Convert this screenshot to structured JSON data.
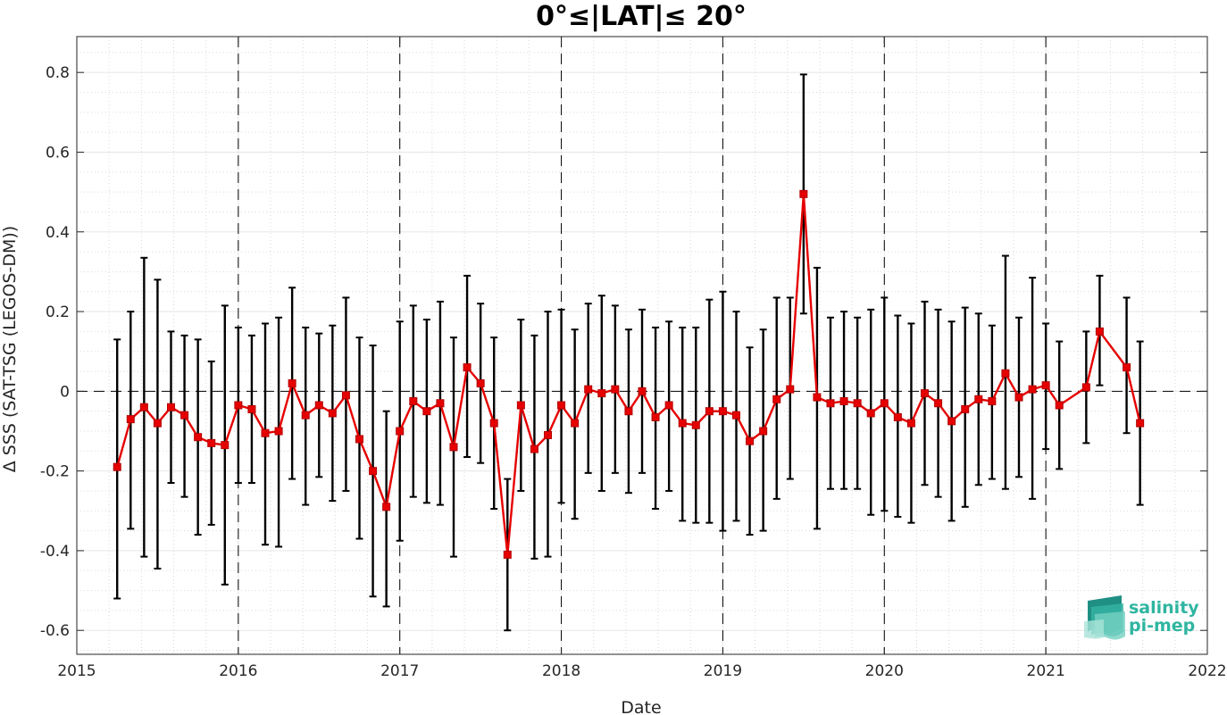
{
  "chart_data": {
    "type": "line",
    "title": "0°≤|LAT|≤ 20°",
    "xlabel": "Date",
    "ylabel": "Δ SSS (SAT-TSG (LEGOS-DM))",
    "xlim": [
      2015,
      2022
    ],
    "ylim": [
      -0.66,
      0.89
    ],
    "x_ticks": [
      "2015",
      "2016",
      "2017",
      "2018",
      "2019",
      "2020",
      "2021",
      "2022"
    ],
    "y_ticks": [
      "-0.6",
      "-0.4",
      "-0.2",
      "0",
      "0.2",
      "0.4",
      "0.6",
      "0.8"
    ],
    "grid": true,
    "year_separators": [
      2016,
      2017,
      2018,
      2019,
      2020,
      2021
    ],
    "zero_line": 0,
    "colors": {
      "series": "#e60000",
      "errorbar": "#000000",
      "grid": "#d9d9d9",
      "logo": "#2fb5a1"
    },
    "series": [
      {
        "x": [
          "2015-04",
          "2015-05",
          "2015-06",
          "2015-07",
          "2015-08",
          "2015-09",
          "2015-10",
          "2015-11",
          "2015-12",
          "2016-01",
          "2016-02",
          "2016-03",
          "2016-04",
          "2016-05",
          "2016-06",
          "2016-07",
          "2016-08",
          "2016-09",
          "2016-10",
          "2016-11",
          "2016-12",
          "2017-01",
          "2017-02",
          "2017-03",
          "2017-04",
          "2017-05",
          "2017-06",
          "2017-07",
          "2017-08",
          "2017-09",
          "2017-10",
          "2017-11",
          "2017-12",
          "2018-01",
          "2018-02",
          "2018-03",
          "2018-04",
          "2018-05",
          "2018-06",
          "2018-07",
          "2018-08",
          "2018-09",
          "2018-10",
          "2018-11",
          "2018-12",
          "2019-01",
          "2019-02",
          "2019-03",
          "2019-04",
          "2019-05",
          "2019-06",
          "2019-07",
          "2019-08",
          "2019-09",
          "2019-10",
          "2019-11",
          "2019-12",
          "2020-01",
          "2020-02",
          "2020-03",
          "2020-04",
          "2020-05",
          "2020-06",
          "2020-07",
          "2020-08",
          "2020-09",
          "2020-10",
          "2020-11",
          "2020-12",
          "2021-01",
          "2021-02",
          "2021-04",
          "2021-05",
          "2021-07",
          "2021-08"
        ],
        "values": [
          -0.19,
          -0.07,
          -0.04,
          -0.08,
          -0.04,
          -0.06,
          -0.115,
          -0.13,
          -0.135,
          -0.035,
          -0.045,
          -0.105,
          -0.1,
          0.02,
          -0.06,
          -0.035,
          -0.055,
          -0.01,
          -0.12,
          -0.2,
          -0.29,
          -0.1,
          -0.025,
          -0.05,
          -0.03,
          -0.14,
          0.06,
          0.02,
          -0.08,
          -0.41,
          -0.035,
          -0.145,
          -0.11,
          -0.035,
          -0.08,
          0.005,
          -0.005,
          0.005,
          -0.05,
          0.0,
          -0.065,
          -0.035,
          -0.08,
          -0.085,
          -0.05,
          -0.05,
          -0.06,
          -0.125,
          -0.1,
          -0.02,
          0.005,
          0.495,
          -0.015,
          -0.03,
          -0.025,
          -0.03,
          -0.055,
          -0.03,
          -0.065,
          -0.08,
          -0.005,
          -0.03,
          -0.075,
          -0.045,
          -0.02,
          -0.025,
          0.045,
          -0.015,
          0.005,
          0.015,
          -0.035,
          0.01,
          0.15,
          0.06,
          -0.08
        ],
        "err_low": [
          -0.52,
          -0.345,
          -0.415,
          -0.445,
          -0.23,
          -0.265,
          -0.36,
          -0.335,
          -0.485,
          -0.23,
          -0.23,
          -0.385,
          -0.39,
          -0.22,
          -0.285,
          -0.215,
          -0.275,
          -0.25,
          -0.37,
          -0.515,
          -0.54,
          -0.375,
          -0.265,
          -0.28,
          -0.285,
          -0.415,
          -0.165,
          -0.18,
          -0.295,
          -0.6,
          -0.25,
          -0.42,
          -0.415,
          -0.28,
          -0.32,
          -0.205,
          -0.25,
          -0.205,
          -0.255,
          -0.205,
          -0.295,
          -0.25,
          -0.325,
          -0.33,
          -0.33,
          -0.35,
          -0.325,
          -0.36,
          -0.35,
          -0.27,
          -0.22,
          0.195,
          -0.345,
          -0.245,
          -0.245,
          -0.245,
          -0.31,
          -0.3,
          -0.315,
          -0.33,
          -0.235,
          -0.265,
          -0.325,
          -0.29,
          -0.235,
          -0.22,
          -0.245,
          -0.215,
          -0.27,
          -0.145,
          -0.195,
          -0.13,
          0.015,
          -0.105,
          -0.285
        ],
        "err_high": [
          0.13,
          0.2,
          0.335,
          0.28,
          0.15,
          0.14,
          0.13,
          0.075,
          0.215,
          0.16,
          0.14,
          0.17,
          0.185,
          0.26,
          0.16,
          0.145,
          0.165,
          0.235,
          0.135,
          0.115,
          -0.05,
          0.175,
          0.215,
          0.18,
          0.225,
          0.135,
          0.29,
          0.22,
          0.135,
          -0.22,
          0.18,
          0.14,
          0.2,
          0.205,
          0.155,
          0.22,
          0.24,
          0.215,
          0.155,
          0.205,
          0.16,
          0.175,
          0.16,
          0.16,
          0.23,
          0.25,
          0.2,
          0.11,
          0.155,
          0.235,
          0.235,
          0.795,
          0.31,
          0.185,
          0.2,
          0.185,
          0.205,
          0.235,
          0.19,
          0.17,
          0.225,
          0.205,
          0.175,
          0.21,
          0.195,
          0.165,
          0.34,
          0.185,
          0.285,
          0.17,
          0.125,
          0.15,
          0.29,
          0.235,
          0.125
        ]
      }
    ]
  },
  "logo": {
    "line1": "salinity",
    "line2": "pi-mep"
  }
}
